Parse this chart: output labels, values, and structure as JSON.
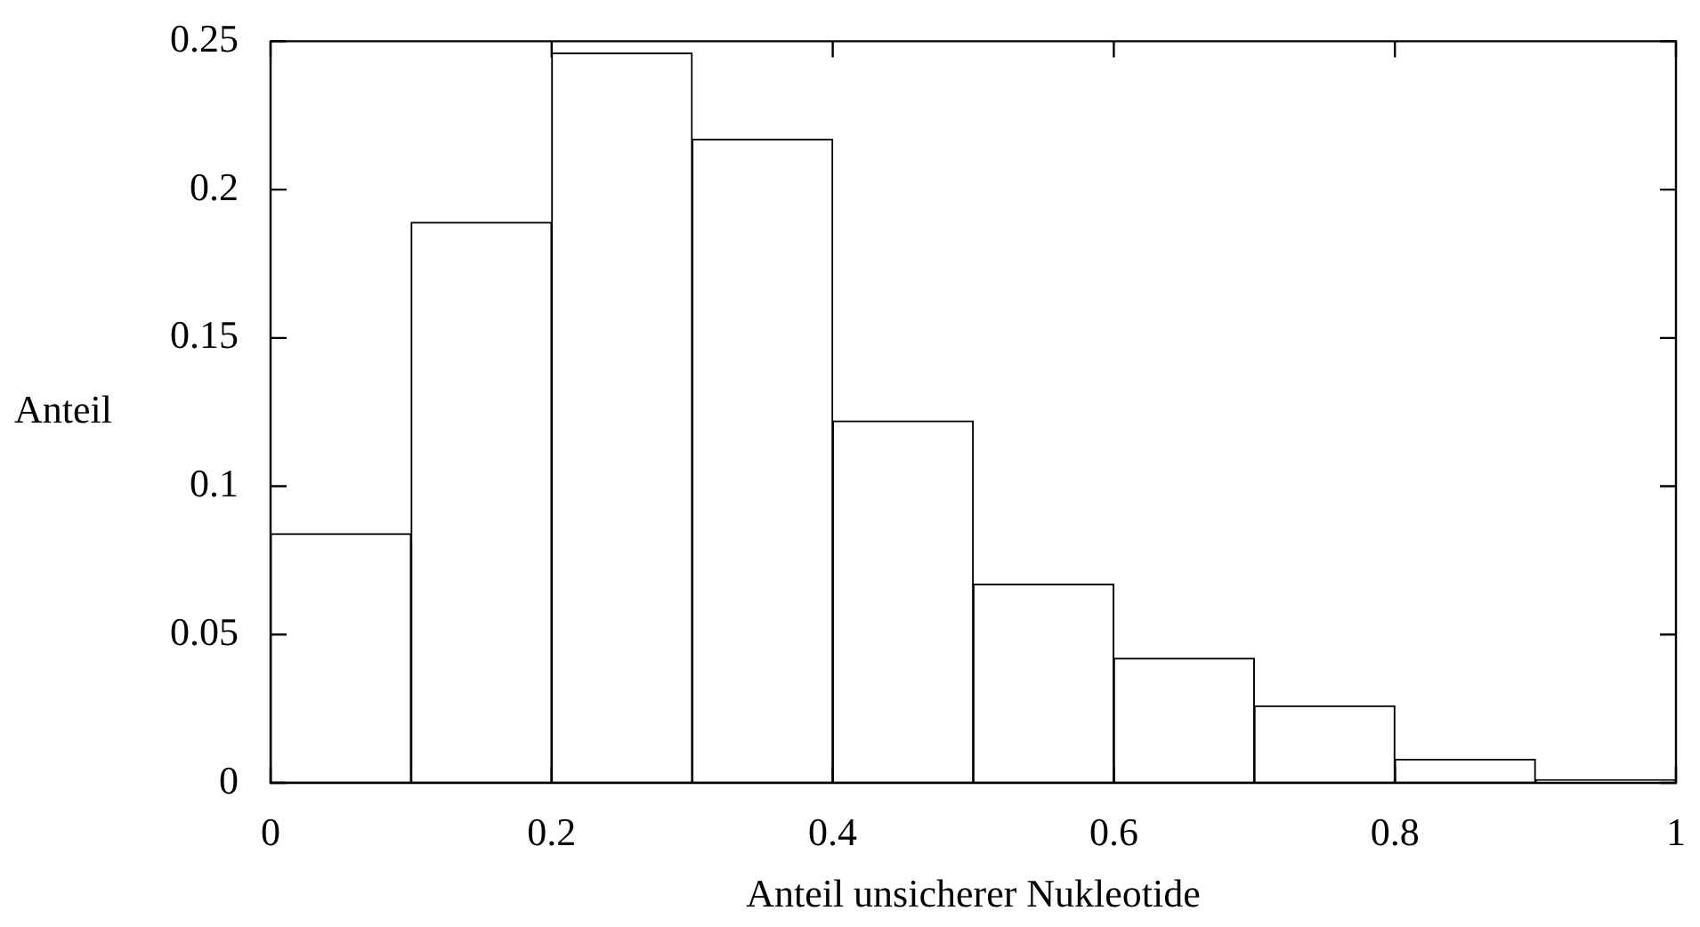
{
  "chart_data": {
    "type": "histogram",
    "xlabel": "Anteil unsicherer Nukleotide",
    "ylabel": "Anteil",
    "bins": [
      0,
      0.1,
      0.2,
      0.3,
      0.4,
      0.5,
      0.6,
      0.7,
      0.8,
      0.9,
      1
    ],
    "values": [
      0.084,
      0.189,
      0.246,
      0.217,
      0.122,
      0.067,
      0.042,
      0.026,
      0.008,
      0.001
    ],
    "color": "#ffffff",
    "xlim": [
      0,
      1
    ],
    "xticks": [
      0,
      0.2,
      0.4,
      0.6,
      0.8,
      1
    ],
    "ylim": [
      0,
      0.25
    ],
    "yticks": [
      0,
      0.05,
      0.1,
      0.15,
      0.2,
      0.25
    ],
    "grid": false,
    "legend": false
  }
}
